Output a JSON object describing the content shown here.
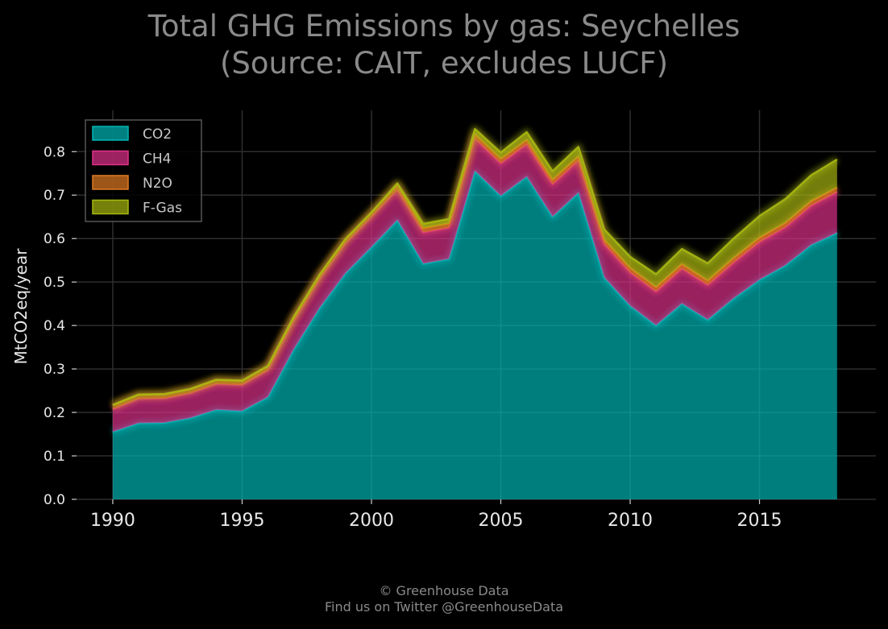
{
  "chart_data": {
    "type": "area",
    "stacked": true,
    "title_lines": [
      "Total GHG Emissions by gas: Seychelles",
      "(Source: CAIT, excludes LUCF)"
    ],
    "xlabel": "",
    "ylabel": "MtCO2eq/year",
    "xlim": [
      1988.6,
      2019.5
    ],
    "ylim": [
      0,
      0.895
    ],
    "x_ticks": [
      1990,
      1995,
      2000,
      2005,
      2010,
      2015
    ],
    "y_ticks": [
      0.0,
      0.1,
      0.2,
      0.3,
      0.4,
      0.5,
      0.6,
      0.7,
      0.8
    ],
    "y_tick_labels": [
      "0.0",
      "0.1",
      "0.2",
      "0.3",
      "0.4",
      "0.5",
      "0.6",
      "0.7",
      "0.8"
    ],
    "grid": true,
    "legend_position": "top-left",
    "x": [
      1990,
      1991,
      1992,
      1993,
      1994,
      1995,
      1996,
      1997,
      1998,
      1999,
      2000,
      2001,
      2002,
      2003,
      2004,
      2005,
      2006,
      2007,
      2008,
      2009,
      2010,
      2011,
      2012,
      2013,
      2014,
      2015,
      2016,
      2017,
      2018
    ],
    "series": [
      {
        "name": "CO2",
        "color": "#00b8b8",
        "values": [
          0.155,
          0.175,
          0.176,
          0.187,
          0.206,
          0.203,
          0.235,
          0.345,
          0.44,
          0.52,
          0.58,
          0.642,
          0.542,
          0.553,
          0.755,
          0.698,
          0.742,
          0.65,
          0.705,
          0.51,
          0.445,
          0.4,
          0.45,
          0.413,
          0.462,
          0.505,
          0.538,
          0.585,
          0.613
        ]
      },
      {
        "name": "CH4",
        "color": "#e0308a",
        "values": [
          0.052,
          0.056,
          0.056,
          0.057,
          0.059,
          0.06,
          0.062,
          0.065,
          0.067,
          0.069,
          0.07,
          0.07,
          0.072,
          0.072,
          0.075,
          0.075,
          0.075,
          0.075,
          0.074,
          0.077,
          0.077,
          0.078,
          0.081,
          0.08,
          0.083,
          0.087,
          0.088,
          0.091,
          0.094
        ]
      },
      {
        "name": "N2O",
        "color": "#e07a22",
        "values": [
          0.01,
          0.01,
          0.01,
          0.01,
          0.01,
          0.01,
          0.01,
          0.01,
          0.01,
          0.01,
          0.01,
          0.01,
          0.01,
          0.01,
          0.01,
          0.01,
          0.01,
          0.01,
          0.01,
          0.01,
          0.01,
          0.01,
          0.01,
          0.01,
          0.01,
          0.01,
          0.01,
          0.01,
          0.01
        ]
      },
      {
        "name": "F-Gas",
        "color": "#a8b810",
        "values": [
          0.0,
          0.0,
          0.0,
          0.0,
          0.0,
          0.0,
          0.0,
          0.0,
          0.0,
          0.0,
          0.0,
          0.005,
          0.01,
          0.01,
          0.012,
          0.015,
          0.018,
          0.02,
          0.022,
          0.024,
          0.026,
          0.03,
          0.035,
          0.04,
          0.045,
          0.05,
          0.055,
          0.06,
          0.065
        ]
      }
    ]
  },
  "footer": {
    "copyright": "© Greenhouse Data",
    "twitter": "Find us on Twitter @GreenhouseData"
  }
}
